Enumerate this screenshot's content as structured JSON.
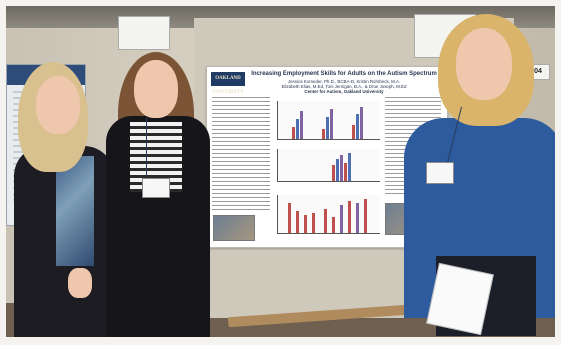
{
  "poster": {
    "logo_text": "OAKLAND UNIVERSITY",
    "title": "Increasing Employment Skills for Adults on the Autism Spectrum",
    "authors_line1": "Jessica Korneder, Ph.D., BCBA-D, Kristin Rohrbeck, M.A.",
    "authors_line2": "Elizabeth Elias, M.Ed, Toni Jernigan, B.A., & Drue Joseph, M.Ed",
    "center": "Center for Autism, Oakland University"
  },
  "colors": {
    "poster_title": "#2b3550",
    "bar_red": "#c0504d",
    "bar_blue": "#4f6fb3",
    "bar_purple": "#8064a2",
    "navy_sweater": "#2e5a9e"
  },
  "booth_number": "04"
}
